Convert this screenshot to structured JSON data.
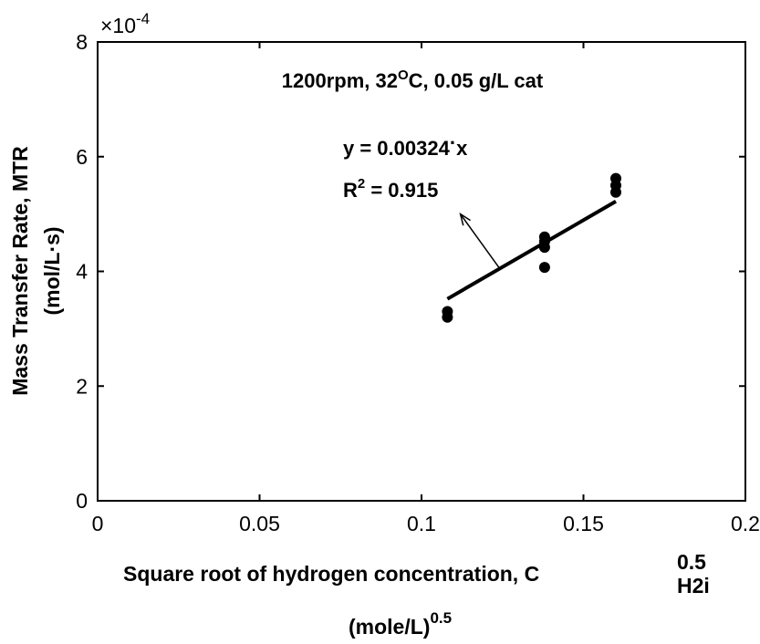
{
  "chart_data": {
    "type": "scatter",
    "annotation_title": "1200rpm, 32",
    "annotation_title_sup": "O",
    "annotation_title_tail": "C, 0.05 g/L cat",
    "ylabel_line1": "Mass Transfer Rate, MTR",
    "ylabel_line2": "(mol/L·s)",
    "xlabel_main": "Square root of hydrogen concentration, C",
    "xlabel_sup": "0.5",
    "xlabel_sub": "H2i",
    "xlabel_line2": "(mole/L)",
    "xlabel_line2_sup": "0.5",
    "y_multiplier_prefix": "×10",
    "y_multiplier_exp": "-4",
    "xlim": [
      0,
      0.2
    ],
    "ylim": [
      0,
      8
    ],
    "x_ticks": [
      0,
      0.05,
      0.1,
      0.15,
      0.2
    ],
    "x_tick_labels": [
      "0",
      "0.05",
      "0.1",
      "0.15",
      "0.2"
    ],
    "y_ticks": [
      0,
      2,
      4,
      6,
      8
    ],
    "y_tick_labels": [
      "0",
      "2",
      "4",
      "6",
      "8"
    ],
    "grid": false,
    "points": [
      {
        "x": 0.108,
        "y": 3.3
      },
      {
        "x": 0.108,
        "y": 3.2
      },
      {
        "x": 0.138,
        "y": 4.6
      },
      {
        "x": 0.138,
        "y": 4.52
      },
      {
        "x": 0.138,
        "y": 4.42
      },
      {
        "x": 0.138,
        "y": 4.07
      },
      {
        "x": 0.16,
        "y": 5.62
      },
      {
        "x": 0.16,
        "y": 5.5
      },
      {
        "x": 0.16,
        "y": 5.38
      }
    ],
    "fit_line": {
      "x_start": 0.108,
      "x_end": 0.16,
      "y_start": 3.52,
      "y_end": 5.22
    },
    "equation_text": "y = 0.00324",
    "equation_dot": "·",
    "equation_tail": "x",
    "r2_prefix": "R",
    "r2_sup": "2",
    "r2_tail": " = 0.915",
    "arrow": {
      "from": {
        "x": 0.124,
        "y": 4.06
      },
      "to": {
        "x": 0.112,
        "y": 5.0
      }
    }
  }
}
